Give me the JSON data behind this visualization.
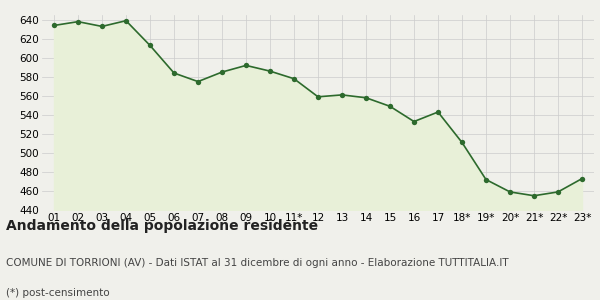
{
  "labels": [
    "01",
    "02",
    "03",
    "04",
    "05",
    "06",
    "07",
    "08",
    "09",
    "10",
    "11*",
    "12",
    "13",
    "14",
    "15",
    "16",
    "17",
    "18*",
    "19*",
    "20*",
    "21*",
    "22*",
    "23*"
  ],
  "values": [
    634,
    638,
    633,
    639,
    613,
    584,
    575,
    585,
    592,
    586,
    578,
    559,
    561,
    558,
    549,
    533,
    543,
    511,
    472,
    459,
    455,
    459,
    473
  ],
  "line_color": "#2d6a2d",
  "fill_color": "#e8f0d8",
  "marker_color": "#2d6a2d",
  "bg_color": "#f0f0eb",
  "grid_color": "#cccccc",
  "ylim": [
    440,
    645
  ],
  "yticks": [
    440,
    460,
    480,
    500,
    520,
    540,
    560,
    580,
    600,
    620,
    640
  ],
  "title": "Andamento della popolazione residente",
  "subtitle": "COMUNE DI TORRIONI (AV) - Dati ISTAT al 31 dicembre di ogni anno - Elaborazione TUTTITALIA.IT",
  "footnote": "(*) post-censimento",
  "title_fontsize": 10,
  "subtitle_fontsize": 7.5,
  "footnote_fontsize": 7.5,
  "tick_fontsize": 7.5
}
